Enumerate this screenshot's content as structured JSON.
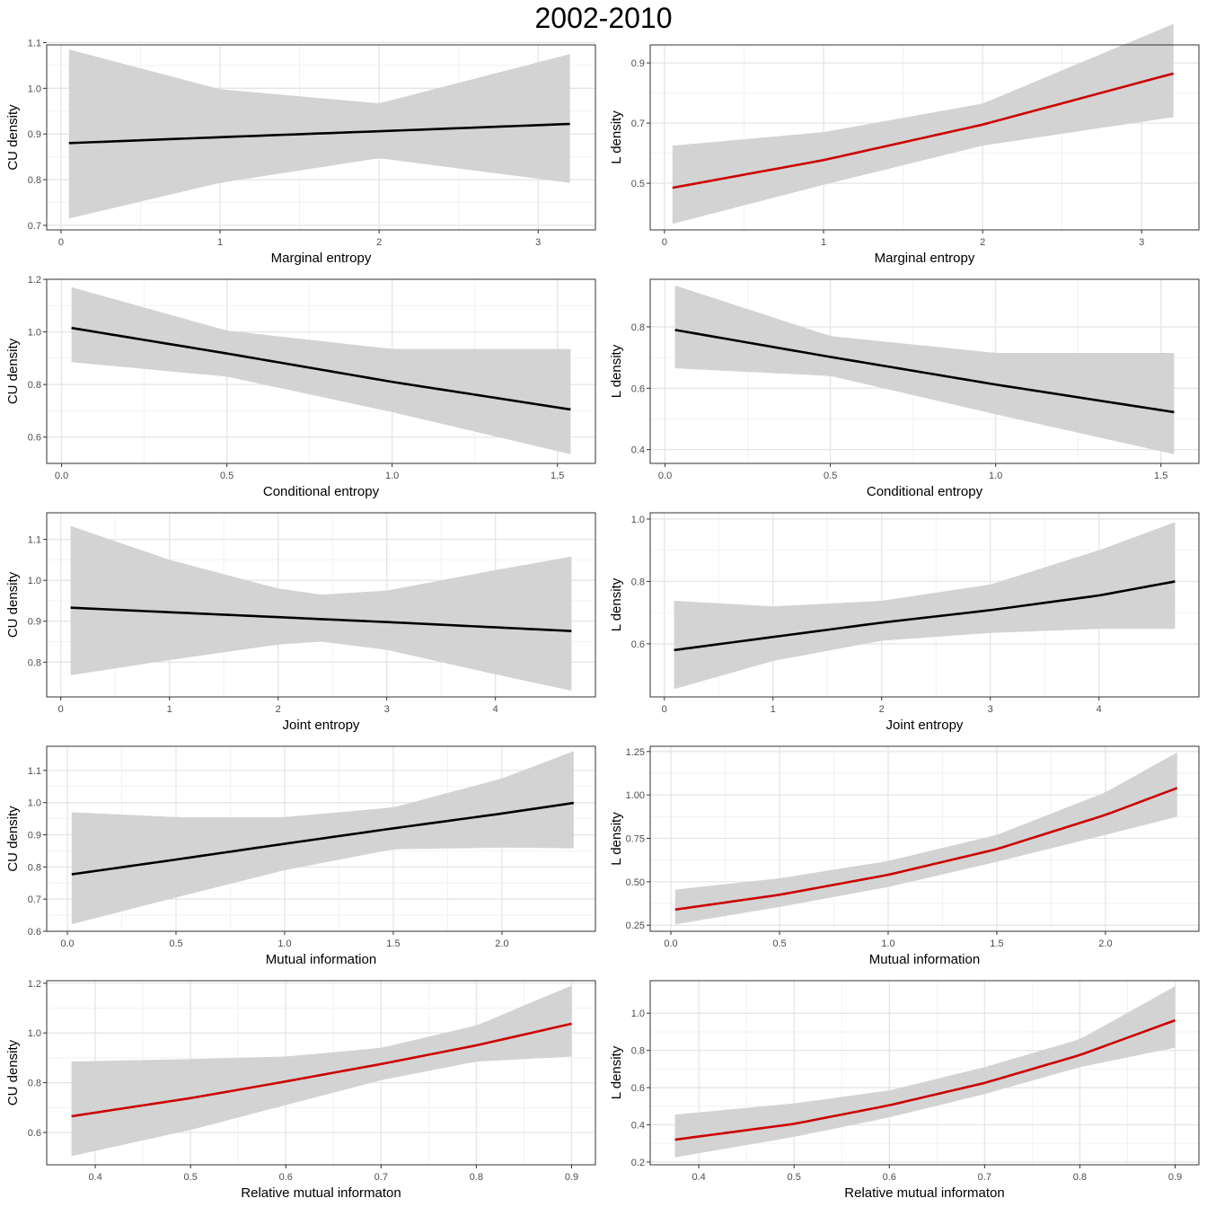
{
  "figure_title": "2002-2010",
  "colors": {
    "significant": "#CC0000",
    "nonsignificant": "#000000",
    "ribbon": "#D3D3D3",
    "panel_border": "#333333",
    "grid_major": "#E5E5E5",
    "grid_minor": "#F2F2F2"
  },
  "chart_data": [
    {
      "type": "line",
      "xlabel": "Marginal entropy",
      "ylabel": "CU density",
      "xlim": [
        -0.09,
        3.36
      ],
      "ylim": [
        0.69,
        1.095
      ],
      "xticks": [
        0,
        1,
        2,
        3
      ],
      "yticks": [
        0.7,
        0.8,
        0.9,
        1.0,
        1.1
      ],
      "xtick_labels": [
        "0",
        "1",
        "2",
        "3"
      ],
      "ytick_labels": [
        "0.7",
        "0.8",
        "0.9",
        "1.0",
        "1.1"
      ],
      "line_color": "#000000",
      "x": [
        0.05,
        1.0,
        2.0,
        3.2
      ],
      "fit": [
        0.88,
        0.893,
        0.906,
        0.922
      ],
      "lower": [
        0.715,
        0.793,
        0.847,
        0.793
      ],
      "upper": [
        1.085,
        0.998,
        0.967,
        1.075
      ]
    },
    {
      "type": "line",
      "xlabel": "Marginal entropy",
      "ylabel": "L density",
      "xlim": [
        -0.09,
        3.36
      ],
      "ylim": [
        0.345,
        0.96
      ],
      "xticks": [
        0,
        1,
        2,
        3
      ],
      "yticks": [
        0.5,
        0.7,
        0.9
      ],
      "xtick_labels": [
        "0",
        "1",
        "2",
        "3"
      ],
      "ytick_labels": [
        "0.5",
        "0.7",
        "0.9"
      ],
      "line_color": "#CC0000",
      "x": [
        0.05,
        1.0,
        2.0,
        3.2
      ],
      "fit": [
        0.485,
        0.577,
        0.695,
        0.865
      ],
      "lower": [
        0.365,
        0.495,
        0.625,
        0.72
      ],
      "upper": [
        0.625,
        0.67,
        0.765,
        1.03
      ]
    },
    {
      "type": "line",
      "xlabel": "Conditional entropy",
      "ylabel": "CU density",
      "xlim": [
        -0.045,
        1.615
      ],
      "ylim": [
        0.5,
        1.2
      ],
      "xticks": [
        0.0,
        0.5,
        1.0,
        1.5
      ],
      "yticks": [
        0.6,
        0.8,
        1.0,
        1.2
      ],
      "xtick_labels": [
        "0.0",
        "0.5",
        "1.0",
        "1.5"
      ],
      "ytick_labels": [
        "0.6",
        "0.8",
        "1.0",
        "1.2"
      ],
      "line_color": "#000000",
      "x": [
        0.03,
        0.5,
        1.0,
        1.54
      ],
      "fit": [
        1.015,
        0.918,
        0.81,
        0.705
      ],
      "lower": [
        0.885,
        0.83,
        0.695,
        0.535
      ],
      "upper": [
        1.17,
        1.005,
        0.935,
        0.935
      ]
    },
    {
      "type": "line",
      "xlabel": "Conditional entropy",
      "ylabel": "L density",
      "xlim": [
        -0.045,
        1.615
      ],
      "ylim": [
        0.355,
        0.955
      ],
      "xticks": [
        0.0,
        0.5,
        1.0,
        1.5
      ],
      "yticks": [
        0.4,
        0.6,
        0.8
      ],
      "xtick_labels": [
        "0.0",
        "0.5",
        "1.0",
        "1.5"
      ],
      "ytick_labels": [
        "0.4",
        "0.6",
        "0.8"
      ],
      "line_color": "#000000",
      "x": [
        0.03,
        0.5,
        1.0,
        1.54
      ],
      "fit": [
        0.79,
        0.702,
        0.612,
        0.522
      ],
      "lower": [
        0.665,
        0.64,
        0.515,
        0.385
      ],
      "upper": [
        0.935,
        0.77,
        0.715,
        0.715
      ]
    },
    {
      "type": "line",
      "xlabel": "Joint entropy",
      "ylabel": "CU density",
      "xlim": [
        -0.13,
        4.92
      ],
      "ylim": [
        0.715,
        1.165
      ],
      "xticks": [
        0,
        1,
        2,
        3,
        4
      ],
      "yticks": [
        0.8,
        0.9,
        1.0,
        1.1
      ],
      "xtick_labels": [
        "0",
        "1",
        "2",
        "3",
        "4"
      ],
      "ytick_labels": [
        "0.8",
        "0.9",
        "1.0",
        "1.1"
      ],
      "line_color": "#000000",
      "x": [
        0.09,
        1.0,
        2.0,
        2.4,
        3.0,
        4.0,
        4.7
      ],
      "fit": [
        0.933,
        0.922,
        0.91,
        0.905,
        0.898,
        0.885,
        0.876
      ],
      "lower": [
        0.768,
        0.805,
        0.843,
        0.85,
        0.83,
        0.77,
        0.73
      ],
      "upper": [
        1.133,
        1.05,
        0.98,
        0.965,
        0.975,
        1.025,
        1.058
      ]
    },
    {
      "type": "line",
      "xlabel": "Joint entropy",
      "ylabel": "L density",
      "xlim": [
        -0.13,
        4.92
      ],
      "ylim": [
        0.43,
        1.02
      ],
      "xticks": [
        0,
        1,
        2,
        3,
        4
      ],
      "yticks": [
        0.6,
        0.8,
        1.0
      ],
      "xtick_labels": [
        "0",
        "1",
        "2",
        "3",
        "4"
      ],
      "ytick_labels": [
        "0.6",
        "0.8",
        "1.0"
      ],
      "line_color": "#000000",
      "x": [
        0.09,
        1.0,
        2.0,
        3.0,
        4.0,
        4.7
      ],
      "fit": [
        0.58,
        0.622,
        0.668,
        0.708,
        0.755,
        0.8
      ],
      "lower": [
        0.455,
        0.545,
        0.61,
        0.635,
        0.648,
        0.648
      ],
      "upper": [
        0.738,
        0.72,
        0.738,
        0.79,
        0.9,
        0.99
      ]
    },
    {
      "type": "line",
      "xlabel": "Mutual information",
      "ylabel": "CU density",
      "xlim": [
        -0.095,
        2.43
      ],
      "ylim": [
        0.6,
        1.175
      ],
      "xticks": [
        0.0,
        0.5,
        1.0,
        1.5,
        2.0
      ],
      "yticks": [
        0.6,
        0.7,
        0.8,
        0.9,
        1.0,
        1.1
      ],
      "xtick_labels": [
        "0.0",
        "0.5",
        "1.0",
        "1.5",
        "2.0"
      ],
      "ytick_labels": [
        "0.6",
        "0.7",
        "0.8",
        "0.9",
        "1.0",
        "1.1"
      ],
      "line_color": "#000000",
      "x": [
        0.02,
        0.5,
        1.0,
        1.5,
        2.0,
        2.33
      ],
      "fit": [
        0.777,
        0.823,
        0.872,
        0.92,
        0.966,
        0.999
      ],
      "lower": [
        0.622,
        0.705,
        0.79,
        0.855,
        0.86,
        0.858
      ],
      "upper": [
        0.97,
        0.955,
        0.955,
        0.985,
        1.075,
        1.16
      ]
    },
    {
      "type": "line",
      "xlabel": "Mutual information",
      "ylabel": "L density",
      "xlim": [
        -0.095,
        2.43
      ],
      "ylim": [
        0.215,
        1.28
      ],
      "xticks": [
        0.0,
        0.5,
        1.0,
        1.5,
        2.0
      ],
      "yticks": [
        0.25,
        0.5,
        0.75,
        1.0,
        1.25
      ],
      "xtick_labels": [
        "0.0",
        "0.5",
        "1.0",
        "1.5",
        "2.0"
      ],
      "ytick_labels": [
        "0.25",
        "0.50",
        "0.75",
        "1.00",
        "1.25"
      ],
      "line_color": "#CC0000",
      "x": [
        0.02,
        0.5,
        1.0,
        1.5,
        2.0,
        2.33
      ],
      "fit": [
        0.34,
        0.425,
        0.54,
        0.688,
        0.885,
        1.04
      ],
      "lower": [
        0.255,
        0.355,
        0.47,
        0.615,
        0.77,
        0.875
      ],
      "upper": [
        0.455,
        0.52,
        0.62,
        0.77,
        1.015,
        1.245
      ]
    },
    {
      "type": "line",
      "xlabel": "Relative mutual informaton",
      "ylabel": "CU density",
      "xlim": [
        0.349,
        0.925
      ],
      "ylim": [
        0.47,
        1.21
      ],
      "xticks": [
        0.4,
        0.5,
        0.6,
        0.7,
        0.8,
        0.9
      ],
      "yticks": [
        0.6,
        0.8,
        1.0,
        1.2
      ],
      "xtick_labels": [
        "0.4",
        "0.5",
        "0.6",
        "0.7",
        "0.8",
        "0.9"
      ],
      "ytick_labels": [
        "0.6",
        "0.8",
        "1.0",
        "1.2"
      ],
      "line_color": "#CC0000",
      "x": [
        0.375,
        0.5,
        0.6,
        0.7,
        0.8,
        0.9
      ],
      "fit": [
        0.665,
        0.738,
        0.805,
        0.875,
        0.95,
        1.037
      ],
      "lower": [
        0.505,
        0.61,
        0.71,
        0.81,
        0.885,
        0.905
      ],
      "upper": [
        0.885,
        0.895,
        0.905,
        0.94,
        1.03,
        1.19
      ]
    },
    {
      "type": "line",
      "xlabel": "Relative mutual informaton",
      "ylabel": "L density",
      "xlim": [
        0.349,
        0.925
      ],
      "ylim": [
        0.185,
        1.175
      ],
      "xticks": [
        0.4,
        0.5,
        0.6,
        0.7,
        0.8,
        0.9
      ],
      "yticks": [
        0.2,
        0.4,
        0.6,
        0.8,
        1.0
      ],
      "xtick_labels": [
        "0.4",
        "0.5",
        "0.6",
        "0.7",
        "0.8",
        "0.9"
      ],
      "ytick_labels": [
        "0.2",
        "0.4",
        "0.6",
        "0.8",
        "1.0"
      ],
      "line_color": "#CC0000",
      "x": [
        0.375,
        0.5,
        0.6,
        0.7,
        0.8,
        0.9
      ],
      "fit": [
        0.32,
        0.405,
        0.505,
        0.625,
        0.775,
        0.962
      ],
      "lower": [
        0.225,
        0.335,
        0.44,
        0.565,
        0.71,
        0.815
      ],
      "upper": [
        0.455,
        0.515,
        0.585,
        0.71,
        0.86,
        1.145
      ]
    }
  ]
}
